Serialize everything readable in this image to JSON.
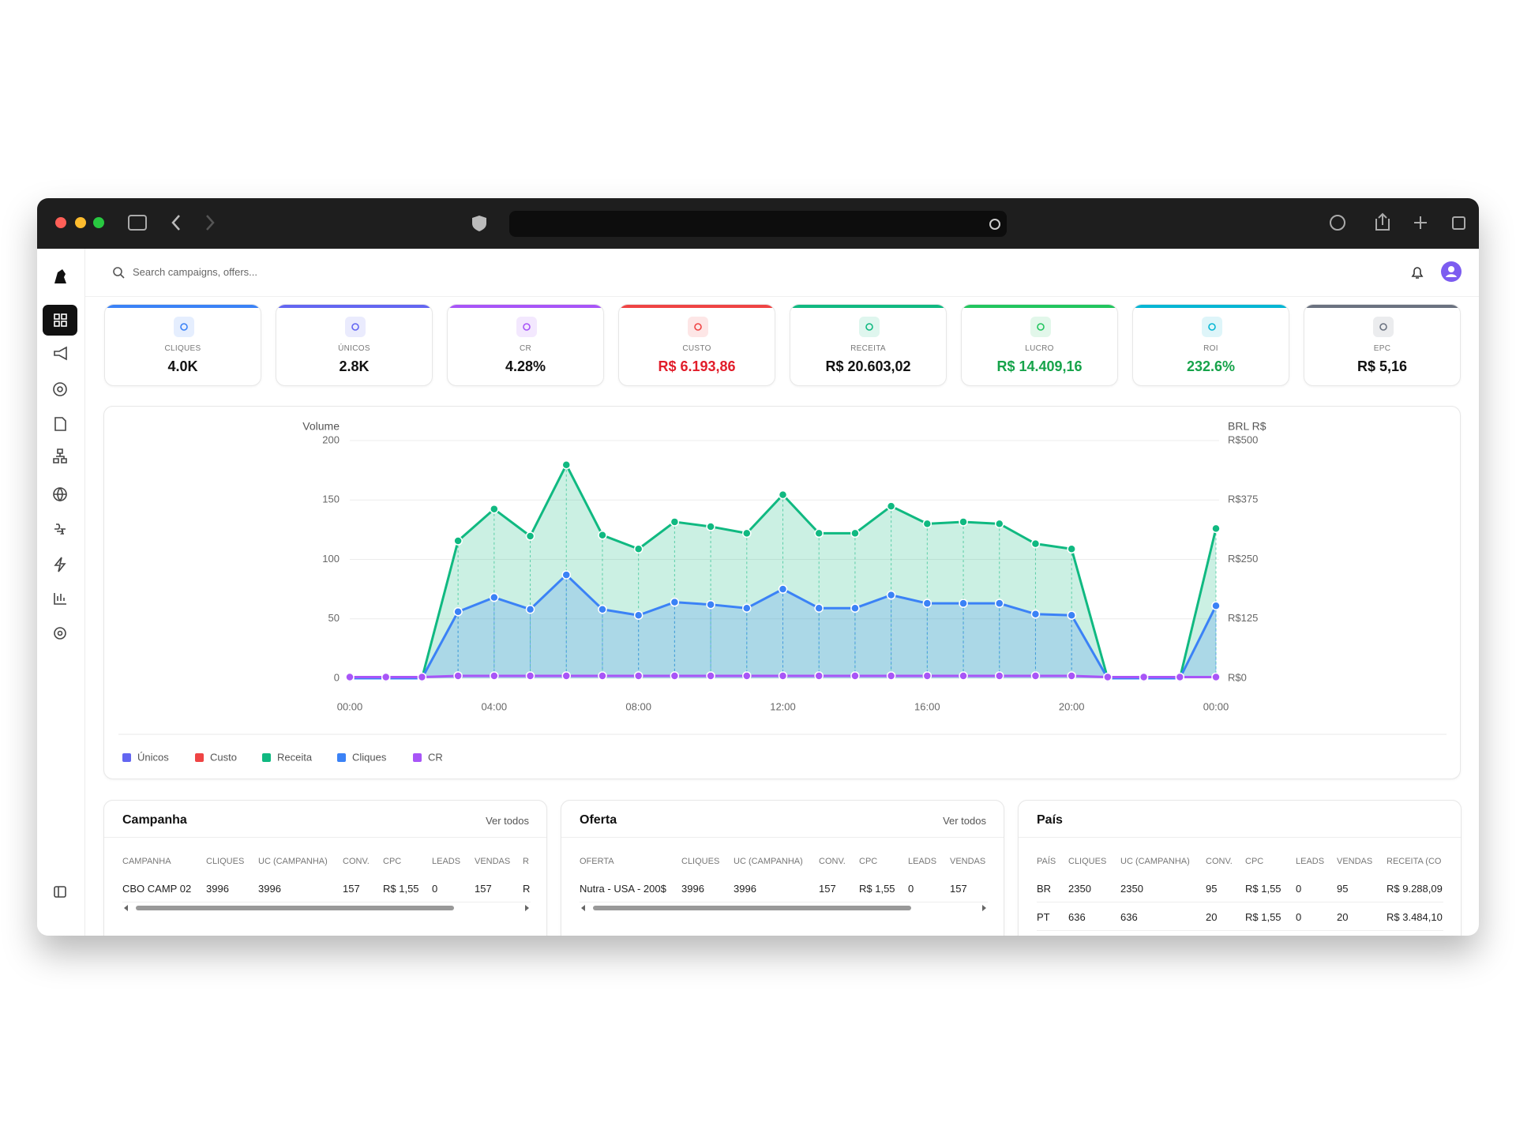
{
  "header": {
    "search_placeholder": "Search campaigns, offers..."
  },
  "kpis": [
    {
      "label": "CLIQUES",
      "value": "4.0K",
      "color": "#3b82f6",
      "value_color": "#111111"
    },
    {
      "label": "ÚNICOS",
      "value": "2.8K",
      "color": "#6366f1",
      "value_color": "#111111"
    },
    {
      "label": "CR",
      "value": "4.28%",
      "color": "#a855f7",
      "value_color": "#111111"
    },
    {
      "label": "CUSTO",
      "value": "R$ 6.193,86",
      "color": "#ef4444",
      "value_color": "#e11d2a"
    },
    {
      "label": "RECEITA",
      "value": "R$ 20.603,02",
      "color": "#10b981",
      "value_color": "#111111"
    },
    {
      "label": "LUCRO",
      "value": "R$ 14.409,16",
      "color": "#22c55e",
      "value_color": "#16a34a"
    },
    {
      "label": "ROI",
      "value": "232.6%",
      "color": "#06b6d4",
      "value_color": "#16a34a"
    },
    {
      "label": "EPC",
      "value": "R$ 5,16",
      "color": "#6b7280",
      "value_color": "#111111"
    }
  ],
  "chart_data": {
    "type": "line",
    "y_label": "Volume",
    "y2_label": "BRL R$",
    "categories": [
      "00:00",
      null,
      null,
      null,
      "04:00",
      null,
      null,
      null,
      "08:00",
      null,
      null,
      null,
      "12:00",
      null,
      null,
      null,
      "16:00",
      null,
      null,
      null,
      "20:00",
      null,
      null,
      null,
      "00:00"
    ],
    "ylim": [
      0,
      200
    ],
    "yticks": [
      0,
      50,
      100,
      150,
      200
    ],
    "y2lim": [
      0,
      500
    ],
    "y2ticks": [
      {
        "value": 0,
        "label": "R$0"
      },
      {
        "value": 125,
        "label": "R$125"
      },
      {
        "value": 250,
        "label": "R$250"
      },
      {
        "value": 375,
        "label": "R$375"
      },
      {
        "value": 500,
        "label": "R$500"
      }
    ],
    "grid": true,
    "series": [
      {
        "name": "Únicos",
        "color": "#6366f1",
        "values": [
          null,
          null,
          null,
          null,
          null,
          null,
          null,
          null,
          null,
          null,
          null,
          null,
          null,
          null,
          null,
          null,
          null,
          null,
          null,
          null,
          null,
          null,
          null,
          null,
          null
        ]
      },
      {
        "name": "Custo",
        "color": "#ef4444",
        "axis": "y2",
        "values": [
          null,
          null,
          null,
          null,
          null,
          null,
          null,
          null,
          null,
          null,
          null,
          null,
          null,
          null,
          null,
          null,
          null,
          null,
          null,
          null,
          null,
          null,
          null,
          null,
          null
        ]
      },
      {
        "name": "Receita",
        "color": "#10b981",
        "axis": "y2",
        "fill": true,
        "values": [
          0,
          0,
          0,
          289,
          356,
          299,
          449,
          301,
          272,
          329,
          319,
          305,
          386,
          305,
          305,
          362,
          325,
          329,
          325,
          283,
          272,
          0,
          0,
          0,
          315
        ]
      },
      {
        "name": "Cliques",
        "color": "#3b82f6",
        "fill": true,
        "values": [
          0,
          0,
          0,
          56,
          68,
          58,
          87,
          58,
          53,
          64,
          62,
          59,
          75,
          59,
          59,
          70,
          63,
          63,
          63,
          54,
          53,
          0,
          0,
          0,
          61
        ]
      },
      {
        "name": "CR",
        "color": "#a855f7",
        "values": [
          1,
          1,
          1,
          2,
          2,
          2,
          2,
          2,
          2,
          2,
          2,
          2,
          2,
          2,
          2,
          2,
          2,
          2,
          2,
          2,
          2,
          1,
          1,
          1,
          1
        ]
      }
    ]
  },
  "tables": [
    {
      "title": "Campanha",
      "link": "Ver todos",
      "columns": [
        "CAMPANHA",
        "CLIQUES",
        "UC (CAMPANHA)",
        "CONV.",
        "CPC",
        "LEADS",
        "VENDAS",
        "R"
      ],
      "rows": [
        [
          "CBO CAMP 02",
          "3996",
          "3996",
          "157",
          "R$ 1,55",
          "0",
          "157",
          "R"
        ]
      ]
    },
    {
      "title": "Oferta",
      "link": "Ver todos",
      "columns": [
        "OFERTA",
        "CLIQUES",
        "UC (CAMPANHA)",
        "CONV.",
        "CPC",
        "LEADS",
        "VENDAS"
      ],
      "rows": [
        [
          "Nutra - USA - 200$",
          "3996",
          "3996",
          "157",
          "R$ 1,55",
          "0",
          "157"
        ]
      ]
    },
    {
      "title": "País",
      "columns": [
        "PAÍS",
        "CLIQUES",
        "UC (CAMPANHA)",
        "CONV.",
        "CPC",
        "LEADS",
        "VENDAS",
        "RECEITA (CO"
      ],
      "rows": [
        [
          "BR",
          "2350",
          "2350",
          "95",
          "R$ 1,55",
          "0",
          "95",
          "R$ 9.288,09"
        ],
        [
          "PT",
          "636",
          "636",
          "20",
          "R$ 1,55",
          "0",
          "20",
          "R$ 3.484,10"
        ]
      ]
    }
  ]
}
